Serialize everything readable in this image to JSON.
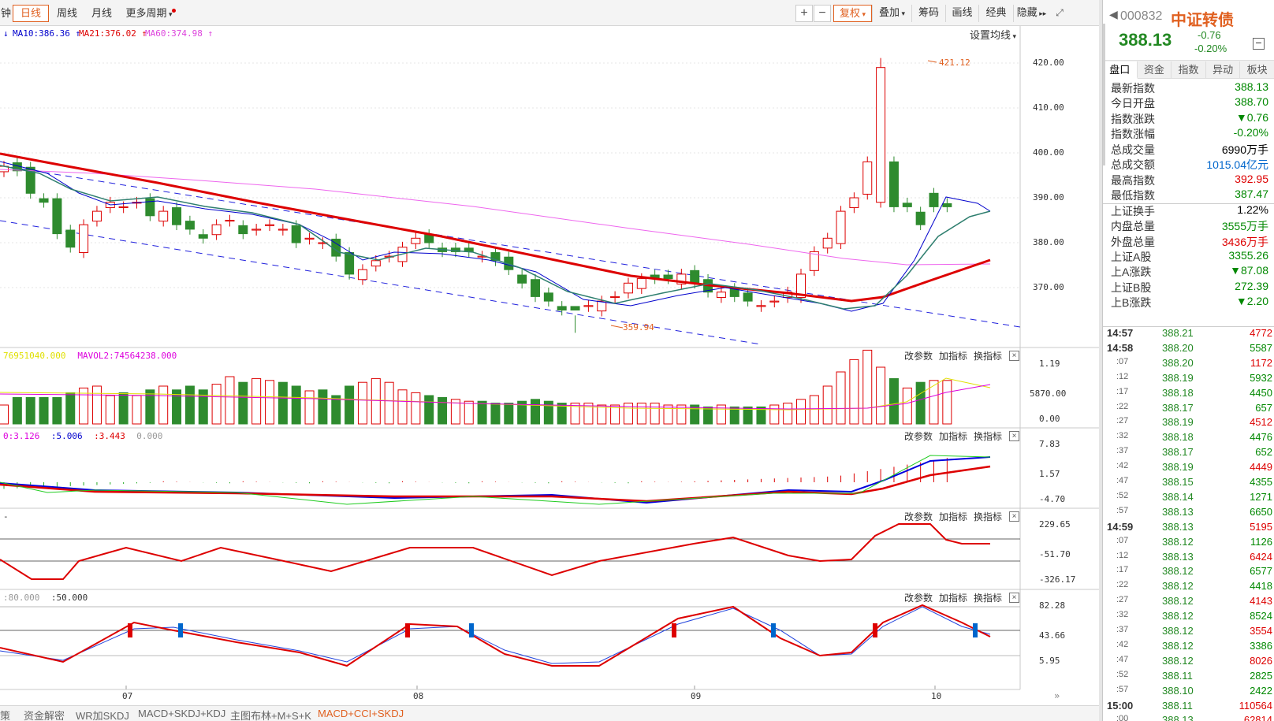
{
  "toolbar": {
    "cut_left_label": "钟",
    "periods": [
      "日线",
      "周线",
      "月线",
      "更多周期"
    ],
    "active_period": 0,
    "zoom_in": "+",
    "zoom_out": "−",
    "right_buttons": [
      "复权",
      "叠加",
      "筹码",
      "画线",
      "经典",
      "隐藏"
    ],
    "fullscreen_icon": "fullscreen-icon"
  },
  "main_chart": {
    "ma_legend": [
      {
        "text": "MA10:386.36",
        "color": "#0000cc"
      },
      {
        "text": "MA21:376.02",
        "color": "#dd0000"
      },
      {
        "text": "MA60:374.98",
        "color": "#dd44dd"
      }
    ],
    "settings_label": "设置均线",
    "y_ticks": [
      "420.00",
      "410.00",
      "400.00",
      "390.00",
      "380.00",
      "370.00"
    ],
    "high_marker": "421.12",
    "low_marker": "359.94",
    "x_labels": [
      "07",
      "08",
      "09",
      "10"
    ]
  },
  "panels": {
    "buttons": [
      "改参数",
      "加指标",
      "换指标"
    ],
    "volume": {
      "legend": [
        {
          "text": "76951040.000",
          "color": "#e0e000"
        },
        {
          "text": "MAVOL2:74564238.000",
          "color": "#dd00dd"
        }
      ],
      "y_ticks": [
        "1.19",
        "5870.00",
        "0.00"
      ]
    },
    "macd": {
      "legend": [
        {
          "text": "0:3.126",
          "color": "#dd00dd"
        },
        {
          "text": ":5.006",
          "color": "#0000cc"
        },
        {
          "text": ":3.443",
          "color": "#dd0000"
        },
        {
          "text": "0.000",
          "color": "#999999"
        }
      ],
      "y_ticks": [
        "7.83",
        "1.57",
        "-4.70"
      ]
    },
    "cci": {
      "legend": [
        {
          "text": "-",
          "color": "#333333"
        }
      ],
      "y_ticks": [
        "229.65",
        "-51.70",
        "-326.17"
      ]
    },
    "skdj": {
      "legend": [
        {
          "text": ":80.000",
          "color": "#999999"
        },
        {
          "text": ":50.000",
          "color": "#333333"
        }
      ],
      "y_ticks": [
        "82.28",
        "43.66",
        "5.95"
      ]
    }
  },
  "bottom_tabs": [
    "策",
    "资金解密",
    "WR加SKDJ",
    "MACD+SKDJ+KDJ",
    "主图布林+M+S+K",
    "MACD+CCI+SKDJ"
  ],
  "active_bottom_tab": 5,
  "sidebar": {
    "code": "000832",
    "name": "中证转债",
    "price": "388.13",
    "change": "-0.76",
    "change_pct": "-0.20%",
    "tabs": [
      "盘口",
      "资金",
      "指数",
      "异动",
      "板块"
    ],
    "stats": [
      {
        "k": "最新指数",
        "v": "388.13",
        "c": "#008800"
      },
      {
        "k": "今日开盘",
        "v": "388.70",
        "c": "#008800"
      },
      {
        "k": "指数涨跌",
        "v": "▼0.76",
        "c": "#008800"
      },
      {
        "k": "指数涨幅",
        "v": "-0.20%",
        "c": "#008800"
      },
      {
        "k": "总成交量",
        "v": "6990万手",
        "c": "#000000"
      },
      {
        "k": "总成交额",
        "v": "1015.04亿元",
        "c": "#0066cc"
      },
      {
        "k": "最高指数",
        "v": "392.95",
        "c": "#dd0000"
      },
      {
        "k": "最低指数",
        "v": "387.47",
        "c": "#008800"
      },
      {
        "k": "上证换手",
        "v": "1.22%",
        "c": "#000000"
      },
      {
        "k": "内盘总量",
        "v": "3555万手",
        "c": "#008800"
      },
      {
        "k": "外盘总量",
        "v": "3436万手",
        "c": "#dd0000"
      },
      {
        "k": "上证A股",
        "v": "3355.26",
        "c": "#008800"
      },
      {
        "k": "上A涨跌",
        "v": "▼87.08",
        "c": "#008800"
      },
      {
        "k": "上证B股",
        "v": "272.39",
        "c": "#008800"
      },
      {
        "k": "上B涨跌",
        "v": "▼2.20",
        "c": "#008800"
      }
    ],
    "ticks": [
      {
        "t": "14:57",
        "p": "388.21",
        "q": "4772",
        "qc": "#dd0000"
      },
      {
        "t": "14:58",
        "p": "388.20",
        "q": "5587",
        "qc": "#008800"
      },
      {
        "t": ":07",
        "p": "388.20",
        "q": "1172",
        "qc": "#dd0000"
      },
      {
        "t": ":12",
        "p": "388.19",
        "q": "5932",
        "qc": "#008800"
      },
      {
        "t": ":17",
        "p": "388.18",
        "q": "4450",
        "qc": "#008800"
      },
      {
        "t": ":22",
        "p": "388.17",
        "q": "657",
        "qc": "#008800"
      },
      {
        "t": ":27",
        "p": "388.19",
        "q": "4512",
        "qc": "#dd0000"
      },
      {
        "t": ":32",
        "p": "388.18",
        "q": "4476",
        "qc": "#008800"
      },
      {
        "t": ":37",
        "p": "388.17",
        "q": "652",
        "qc": "#008800"
      },
      {
        "t": ":42",
        "p": "388.19",
        "q": "4449",
        "qc": "#dd0000"
      },
      {
        "t": ":47",
        "p": "388.15",
        "q": "4355",
        "qc": "#008800"
      },
      {
        "t": ":52",
        "p": "388.14",
        "q": "1271",
        "qc": "#008800"
      },
      {
        "t": ":57",
        "p": "388.13",
        "q": "6650",
        "qc": "#008800"
      },
      {
        "t": "14:59",
        "p": "388.13",
        "q": "5195",
        "qc": "#dd0000"
      },
      {
        "t": ":07",
        "p": "388.12",
        "q": "1126",
        "qc": "#008800"
      },
      {
        "t": ":12",
        "p": "388.13",
        "q": "6424",
        "qc": "#dd0000"
      },
      {
        "t": ":17",
        "p": "388.12",
        "q": "6577",
        "qc": "#008800"
      },
      {
        "t": ":22",
        "p": "388.12",
        "q": "4418",
        "qc": "#008800"
      },
      {
        "t": ":27",
        "p": "388.12",
        "q": "4143",
        "qc": "#dd0000"
      },
      {
        "t": ":32",
        "p": "388.12",
        "q": "8524",
        "qc": "#008800"
      },
      {
        "t": ":37",
        "p": "388.12",
        "q": "3554",
        "qc": "#dd0000"
      },
      {
        "t": ":42",
        "p": "388.12",
        "q": "3386",
        "qc": "#008800"
      },
      {
        "t": ":47",
        "p": "388.12",
        "q": "8026",
        "qc": "#dd0000"
      },
      {
        "t": ":52",
        "p": "388.11",
        "q": "2825",
        "qc": "#008800"
      },
      {
        "t": ":57",
        "p": "388.10",
        "q": "2422",
        "qc": "#008800"
      },
      {
        "t": "15:00",
        "p": "388.11",
        "q": "110564",
        "qc": "#dd0000"
      },
      {
        "t": ":00",
        "p": "388.13",
        "q": "62814",
        "qc": "#dd0000"
      }
    ]
  },
  "colors": {
    "up": "#dd0000",
    "down": "#2e8b2e",
    "accent": "#e06020"
  }
}
